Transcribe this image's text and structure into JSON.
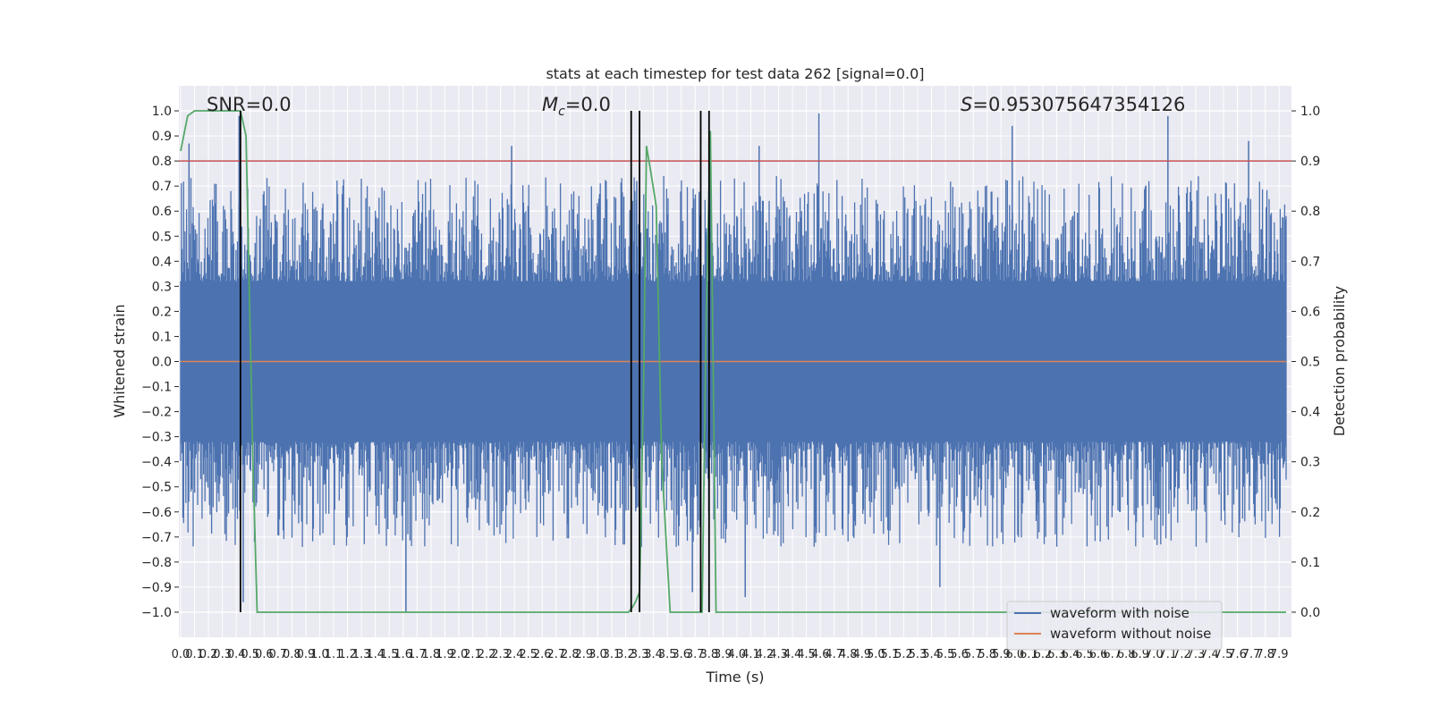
{
  "chart_data": {
    "type": "line",
    "title": "stats at each timestep for test data 262 [signal=0.0]",
    "xlabel": "Time (s)",
    "ylabel": "Whitened strain",
    "y2label": "Detection probability",
    "xlim": [
      0.0,
      7.95
    ],
    "ylim": [
      -1.1,
      1.1
    ],
    "y2lim": [
      -0.05,
      1.05
    ],
    "grid": true,
    "legend_position": "lower-right",
    "annotations": {
      "snr": "SNR=0.0",
      "mc_symbol": "M",
      "mc_sub": "c",
      "mc_value": "=0.0",
      "s_symbol": "S",
      "s_value": "=0.953075647354126"
    },
    "x_ticks": [
      "0.0",
      "0.1",
      "0.2",
      "0.3",
      "0.4",
      "0.5",
      "0.6",
      "0.7",
      "0.8",
      "0.9",
      "1.0",
      "1.1",
      "1.2",
      "1.3",
      "1.4",
      "1.5",
      "1.6",
      "1.7",
      "1.8",
      "1.9",
      "2.0",
      "2.1",
      "2.2",
      "2.3",
      "2.4",
      "2.5",
      "2.6",
      "2.7",
      "2.8",
      "2.9",
      "3.0",
      "3.1",
      "3.2",
      "3.3",
      "3.4",
      "3.5",
      "3.6",
      "3.7",
      "3.8",
      "3.9",
      "4.0",
      "4.1",
      "4.2",
      "4.3",
      "4.4",
      "4.5",
      "4.6",
      "4.7",
      "4.8",
      "4.9",
      "5.0",
      "5.1",
      "5.2",
      "5.3",
      "5.4",
      "5.5",
      "5.6",
      "5.7",
      "5.8",
      "5.9",
      "6.0",
      "6.1",
      "6.2",
      "6.3",
      "6.4",
      "6.5",
      "6.6",
      "6.7",
      "6.8",
      "6.9",
      "7.0",
      "7.1",
      "7.2",
      "7.3",
      "7.4",
      "7.5",
      "7.6",
      "7.7",
      "7.8",
      "7.9"
    ],
    "y_ticks": [
      "−1.0",
      "−0.9",
      "−0.8",
      "−0.7",
      "−0.6",
      "−0.5",
      "−0.4",
      "−0.3",
      "−0.2",
      "−0.1",
      "0.0",
      "0.1",
      "0.2",
      "0.3",
      "0.4",
      "0.5",
      "0.6",
      "0.7",
      "0.8",
      "0.9",
      "1.0"
    ],
    "y2_ticks": [
      "0.0",
      "0.1",
      "0.2",
      "0.3",
      "0.4",
      "0.5",
      "0.6",
      "0.7",
      "0.8",
      "0.9",
      "1.0"
    ],
    "series": [
      {
        "name": "waveform with noise",
        "color": "#4c72b0",
        "axis": "left",
        "envelope_seed": 262,
        "spikes": [
          {
            "x": 0.06,
            "y": 0.87
          },
          {
            "x": 0.42,
            "y": 0.98
          },
          {
            "x": 0.45,
            "y": -0.96
          },
          {
            "x": 1.62,
            "y": -1.0
          },
          {
            "x": 2.38,
            "y": 0.86
          },
          {
            "x": 3.28,
            "y": 0.72
          },
          {
            "x": 3.68,
            "y": -0.92
          },
          {
            "x": 3.81,
            "y": 0.84
          },
          {
            "x": 4.06,
            "y": -0.94
          },
          {
            "x": 4.16,
            "y": 0.86
          },
          {
            "x": 4.59,
            "y": 0.99
          },
          {
            "x": 5.46,
            "y": -0.9
          },
          {
            "x": 5.98,
            "y": 0.94
          },
          {
            "x": 7.1,
            "y": 0.98
          },
          {
            "x": 7.68,
            "y": 0.88
          }
        ]
      },
      {
        "name": "waveform without noise",
        "color": "#dd8452",
        "axis": "left",
        "x": [
          0.0,
          7.95
        ],
        "y": [
          0.0,
          0.0
        ]
      },
      {
        "name": "",
        "color": "#55a868",
        "axis": "right",
        "x": [
          0.0,
          0.05,
          0.1,
          0.15,
          0.2,
          0.25,
          0.3,
          0.35,
          0.38,
          0.4,
          0.43,
          0.47,
          0.52,
          0.55,
          0.6,
          1.0,
          2.0,
          3.0,
          3.17,
          3.22,
          3.25,
          3.27,
          3.3,
          3.33,
          3.35,
          3.38,
          3.42,
          3.46,
          3.52,
          3.6,
          3.65,
          3.7,
          3.75,
          3.78,
          3.81,
          3.85,
          3.9,
          4.2,
          5.0,
          6.0,
          7.0,
          7.6,
          7.75,
          7.85,
          7.95
        ],
        "y": [
          0.92,
          0.99,
          1.0,
          1.0,
          1.0,
          1.0,
          1.0,
          1.0,
          1.0,
          1.0,
          1.0,
          0.95,
          0.3,
          0.0,
          0.0,
          0.0,
          0.0,
          0.0,
          0.0,
          0.0,
          0.01,
          0.02,
          0.04,
          0.46,
          0.93,
          0.88,
          0.81,
          0.3,
          0.0,
          0.0,
          0.0,
          0.0,
          0.0,
          0.6,
          0.96,
          0.0,
          0.0,
          0.0,
          0.0,
          0.0,
          0.0,
          0.0,
          0.0,
          0.0,
          0.0
        ]
      }
    ],
    "hlines": [
      {
        "y": 0.9,
        "axis": "right",
        "color": "#c44e52"
      }
    ],
    "vlines": [
      {
        "x": 0.43,
        "color": "#000000"
      },
      {
        "x": 3.24,
        "color": "#000000"
      },
      {
        "x": 3.3,
        "color": "#000000"
      },
      {
        "x": 3.74,
        "color": "#000000"
      },
      {
        "x": 3.8,
        "color": "#000000"
      }
    ]
  }
}
